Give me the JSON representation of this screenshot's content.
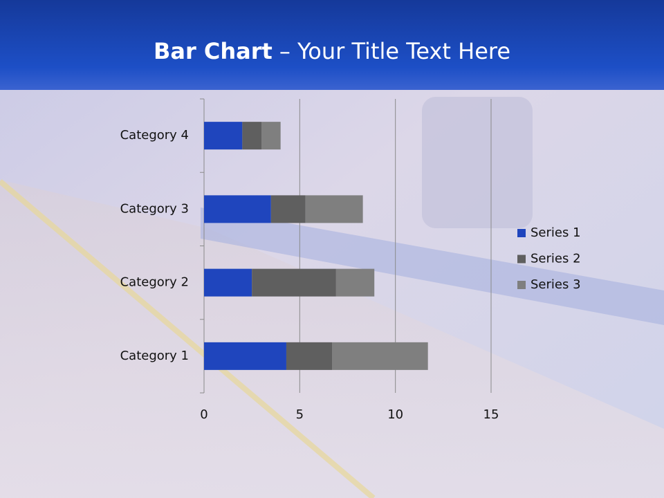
{
  "slide": {
    "title_bold": "Bar Chart",
    "title_rest": "– Your Title Text Here"
  },
  "chart_data": {
    "type": "stacked-bar-horizontal",
    "categories": [
      "Category 1",
      "Category 2",
      "Category 3",
      "Category 4"
    ],
    "series": [
      {
        "name": "Series 1",
        "color": "#1f45bd",
        "values": [
          4.3,
          2.5,
          3.5,
          2.0
        ]
      },
      {
        "name": "Series 2",
        "color": "#5f5f5f",
        "values": [
          2.4,
          4.4,
          1.8,
          1.0
        ]
      },
      {
        "name": "Series 3",
        "color": "#7f7f7f",
        "values": [
          5.0,
          2.0,
          3.0,
          1.0
        ]
      }
    ],
    "xlim": [
      0,
      15
    ],
    "xticks": [
      0,
      5,
      10,
      15
    ],
    "grid": true,
    "legend": "right"
  }
}
